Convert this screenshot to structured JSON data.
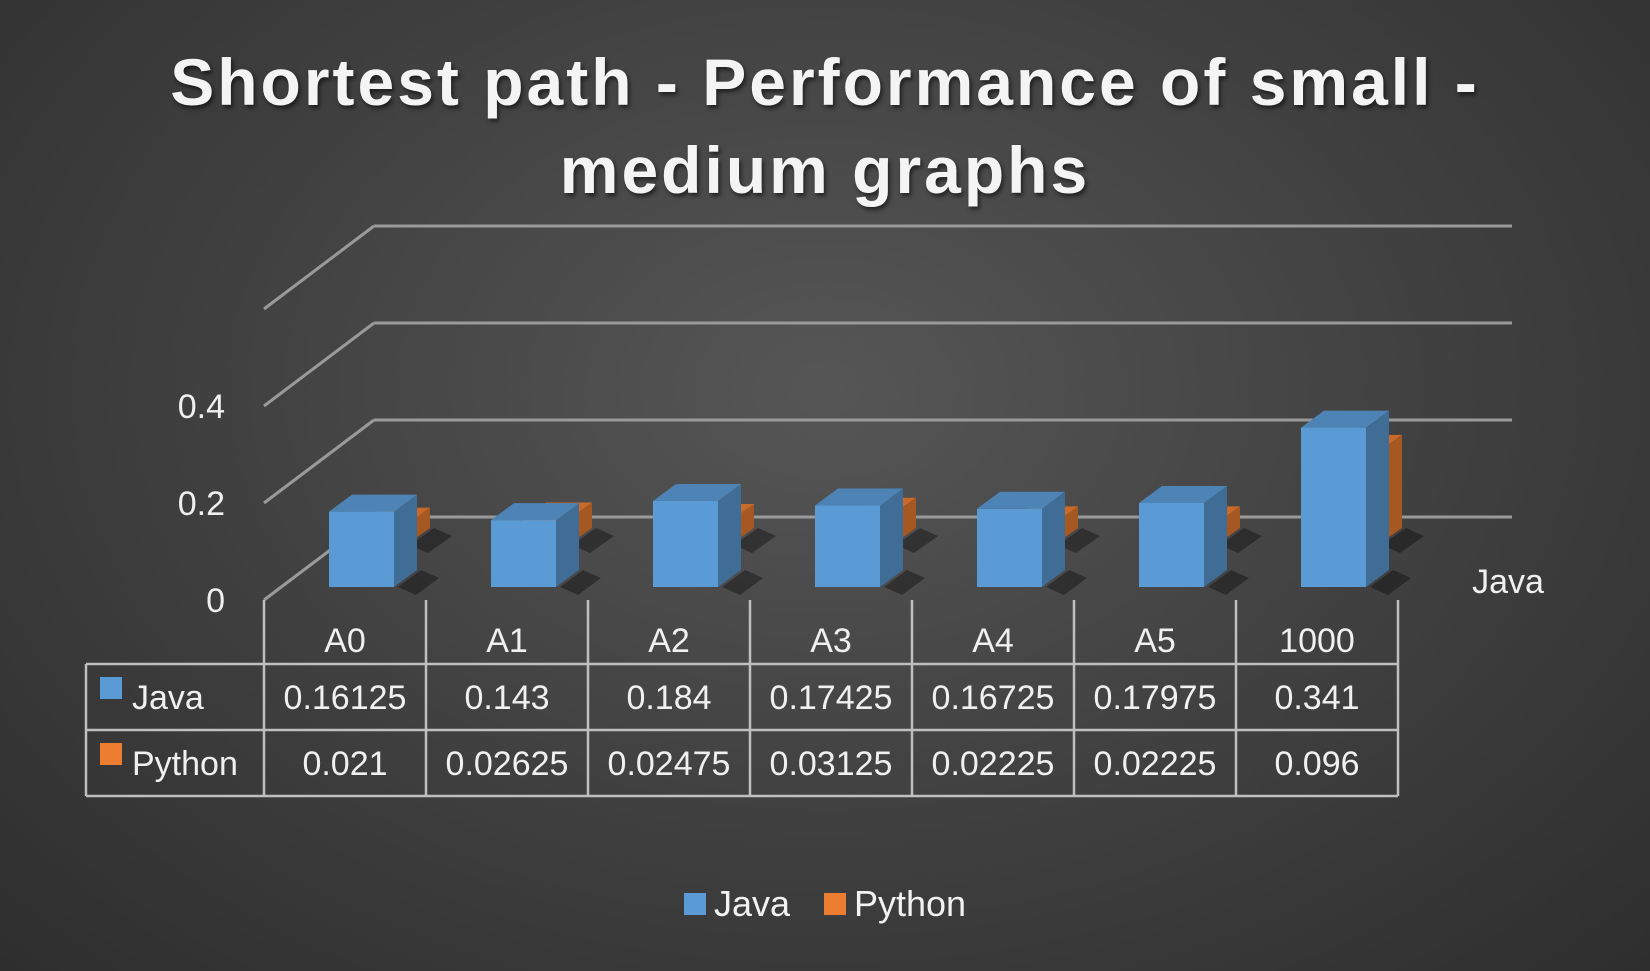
{
  "chart_data": {
    "type": "bar",
    "title": "Shortest path - Performance of small - medium graphs",
    "categories": [
      "A0",
      "A1",
      "A2",
      "A3",
      "A4",
      "A5",
      "1000"
    ],
    "series": [
      {
        "name": "Java",
        "color": "#5b9bd5",
        "values": [
          0.16125,
          0.143,
          0.184,
          0.17425,
          0.16725,
          0.17975,
          0.341
        ],
        "labels": [
          "0.16125",
          "0.143",
          "0.184",
          "0.17425",
          "0.16725",
          "0.17975",
          "0.341"
        ]
      },
      {
        "name": "Python",
        "color": "#ed7d31",
        "values": [
          0.021,
          0.02625,
          0.02475,
          0.03125,
          0.02225,
          0.02225,
          0.096
        ],
        "labels": [
          "0.021",
          "0.02625",
          "0.02475",
          "0.03125",
          "0.02225",
          "0.02225",
          "0.096"
        ]
      }
    ],
    "y_ticks": [
      "0",
      "0.2",
      "0.4"
    ],
    "ylim": [
      0,
      0.4
    ],
    "depth_axis_label": "Java",
    "data_table": true,
    "legend_position": "bottom",
    "grid": true,
    "style": "3d-clustered-column"
  }
}
